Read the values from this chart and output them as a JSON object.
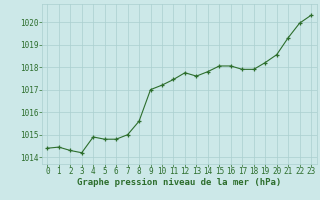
{
  "x": [
    0,
    1,
    2,
    3,
    4,
    5,
    6,
    7,
    8,
    9,
    10,
    11,
    12,
    13,
    14,
    15,
    16,
    17,
    18,
    19,
    20,
    21,
    22,
    23
  ],
  "y": [
    1014.4,
    1014.45,
    1014.3,
    1014.2,
    1014.9,
    1014.8,
    1014.8,
    1015.0,
    1015.6,
    1017.0,
    1017.2,
    1017.45,
    1017.75,
    1017.6,
    1017.8,
    1018.05,
    1018.05,
    1017.9,
    1017.9,
    1018.2,
    1018.55,
    1019.3,
    1019.95,
    1020.3
  ],
  "line_color": "#2d6e2d",
  "marker": "+",
  "markersize": 3.5,
  "linewidth": 0.8,
  "bg_color": "#cce8e8",
  "grid_color": "#aacfcf",
  "xlabel": "Graphe pression niveau de la mer (hPa)",
  "xlabel_fontsize": 6.5,
  "xlabel_color": "#2d6e2d",
  "ytick_labels": [
    "1014",
    "1015",
    "1016",
    "1017",
    "1018",
    "1019",
    "1020"
  ],
  "ylim": [
    1013.7,
    1020.8
  ],
  "xlim": [
    -0.5,
    23.5
  ],
  "xtick_labels": [
    "0",
    "1",
    "2",
    "3",
    "4",
    "5",
    "6",
    "7",
    "8",
    "9",
    "10",
    "11",
    "12",
    "13",
    "14",
    "15",
    "16",
    "17",
    "18",
    "19",
    "20",
    "21",
    "22",
    "23"
  ],
  "yticks": [
    1014,
    1015,
    1016,
    1017,
    1018,
    1019,
    1020
  ],
  "tick_fontsize": 5.5,
  "tick_color": "#2d6e2d"
}
